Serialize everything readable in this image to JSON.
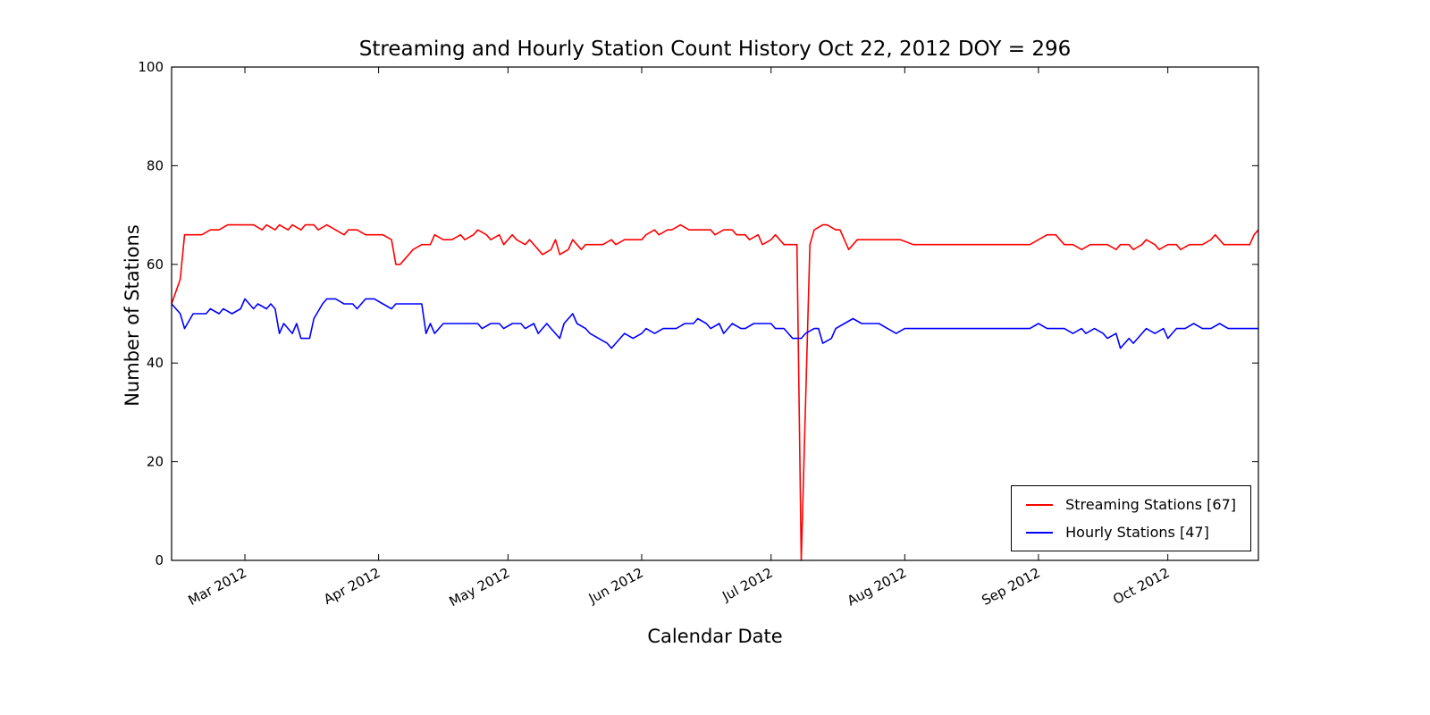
{
  "title": "Streaming and Hourly Station Count History Oct 22, 2012 DOY = 296",
  "chart_data": {
    "type": "line",
    "title": "Streaming and Hourly Station Count History Oct 22, 2012 DOY = 296",
    "xlabel": "Calendar Date",
    "ylabel": "Number of Stations",
    "ylim": [
      0,
      100
    ],
    "yticks": [
      0,
      20,
      40,
      60,
      80,
      100
    ],
    "x_unit": "day_of_year_2012",
    "xlim": [
      44,
      296
    ],
    "xticks": [
      {
        "day": 61,
        "label": "Mar 2012"
      },
      {
        "day": 92,
        "label": "Apr 2012"
      },
      {
        "day": 122,
        "label": "May 2012"
      },
      {
        "day": 153,
        "label": "Jun 2012"
      },
      {
        "day": 183,
        "label": "Jul 2012"
      },
      {
        "day": 214,
        "label": "Aug 2012"
      },
      {
        "day": 245,
        "label": "Sep 2012"
      },
      {
        "day": 275,
        "label": "Oct 2012"
      }
    ],
    "grid": false,
    "legend_position": "lower right",
    "series": [
      {
        "name": "Streaming Stations [67]",
        "color": "#ff0000",
        "points": [
          [
            44,
            52
          ],
          [
            46,
            57
          ],
          [
            47,
            66
          ],
          [
            49,
            66
          ],
          [
            51,
            66
          ],
          [
            53,
            67
          ],
          [
            55,
            67
          ],
          [
            57,
            68
          ],
          [
            59,
            68
          ],
          [
            61,
            68
          ],
          [
            63,
            68
          ],
          [
            65,
            67
          ],
          [
            66,
            68
          ],
          [
            68,
            67
          ],
          [
            69,
            68
          ],
          [
            71,
            67
          ],
          [
            72,
            68
          ],
          [
            74,
            67
          ],
          [
            75,
            68
          ],
          [
            77,
            68
          ],
          [
            78,
            67
          ],
          [
            80,
            68
          ],
          [
            82,
            67
          ],
          [
            84,
            66
          ],
          [
            85,
            67
          ],
          [
            87,
            67
          ],
          [
            89,
            66
          ],
          [
            91,
            66
          ],
          [
            93,
            66
          ],
          [
            95,
            65
          ],
          [
            96,
            60
          ],
          [
            97,
            60
          ],
          [
            98,
            61
          ],
          [
            100,
            63
          ],
          [
            102,
            64
          ],
          [
            104,
            64
          ],
          [
            105,
            66
          ],
          [
            107,
            65
          ],
          [
            109,
            65
          ],
          [
            111,
            66
          ],
          [
            112,
            65
          ],
          [
            114,
            66
          ],
          [
            115,
            67
          ],
          [
            117,
            66
          ],
          [
            118,
            65
          ],
          [
            120,
            66
          ],
          [
            121,
            64
          ],
          [
            123,
            66
          ],
          [
            124,
            65
          ],
          [
            126,
            64
          ],
          [
            127,
            65
          ],
          [
            129,
            63
          ],
          [
            130,
            62
          ],
          [
            132,
            63
          ],
          [
            133,
            65
          ],
          [
            134,
            62
          ],
          [
            136,
            63
          ],
          [
            137,
            65
          ],
          [
            139,
            63
          ],
          [
            140,
            64
          ],
          [
            142,
            64
          ],
          [
            144,
            64
          ],
          [
            146,
            65
          ],
          [
            147,
            64
          ],
          [
            149,
            65
          ],
          [
            151,
            65
          ],
          [
            153,
            65
          ],
          [
            154,
            66
          ],
          [
            156,
            67
          ],
          [
            157,
            66
          ],
          [
            159,
            67
          ],
          [
            160,
            67
          ],
          [
            162,
            68
          ],
          [
            164,
            67
          ],
          [
            165,
            67
          ],
          [
            167,
            67
          ],
          [
            169,
            67
          ],
          [
            170,
            66
          ],
          [
            172,
            67
          ],
          [
            174,
            67
          ],
          [
            175,
            66
          ],
          [
            177,
            66
          ],
          [
            178,
            65
          ],
          [
            180,
            66
          ],
          [
            181,
            64
          ],
          [
            183,
            65
          ],
          [
            184,
            66
          ],
          [
            185,
            65
          ],
          [
            186,
            64
          ],
          [
            188,
            64
          ],
          [
            189,
            64
          ],
          [
            190,
            0
          ],
          [
            192,
            64
          ],
          [
            193,
            67
          ],
          [
            195,
            68
          ],
          [
            196,
            68
          ],
          [
            198,
            67
          ],
          [
            199,
            67
          ],
          [
            201,
            63
          ],
          [
            203,
            65
          ],
          [
            205,
            65
          ],
          [
            207,
            65
          ],
          [
            210,
            65
          ],
          [
            213,
            65
          ],
          [
            216,
            64
          ],
          [
            220,
            64
          ],
          [
            224,
            64
          ],
          [
            228,
            64
          ],
          [
            232,
            64
          ],
          [
            236,
            64
          ],
          [
            240,
            64
          ],
          [
            243,
            64
          ],
          [
            245,
            65
          ],
          [
            247,
            66
          ],
          [
            249,
            66
          ],
          [
            251,
            64
          ],
          [
            253,
            64
          ],
          [
            255,
            63
          ],
          [
            257,
            64
          ],
          [
            259,
            64
          ],
          [
            261,
            64
          ],
          [
            263,
            63
          ],
          [
            264,
            64
          ],
          [
            266,
            64
          ],
          [
            267,
            63
          ],
          [
            269,
            64
          ],
          [
            270,
            65
          ],
          [
            272,
            64
          ],
          [
            273,
            63
          ],
          [
            275,
            64
          ],
          [
            277,
            64
          ],
          [
            278,
            63
          ],
          [
            280,
            64
          ],
          [
            281,
            64
          ],
          [
            283,
            64
          ],
          [
            285,
            65
          ],
          [
            286,
            66
          ],
          [
            288,
            64
          ],
          [
            289,
            64
          ],
          [
            291,
            64
          ],
          [
            293,
            64
          ],
          [
            294,
            64
          ],
          [
            295,
            66
          ],
          [
            296,
            67
          ]
        ]
      },
      {
        "name": "Hourly Stations [47]",
        "color": "#0000ff",
        "points": [
          [
            44,
            52
          ],
          [
            46,
            50
          ],
          [
            47,
            47
          ],
          [
            49,
            50
          ],
          [
            50,
            50
          ],
          [
            52,
            50
          ],
          [
            53,
            51
          ],
          [
            55,
            50
          ],
          [
            56,
            51
          ],
          [
            58,
            50
          ],
          [
            60,
            51
          ],
          [
            61,
            53
          ],
          [
            63,
            51
          ],
          [
            64,
            52
          ],
          [
            66,
            51
          ],
          [
            67,
            52
          ],
          [
            68,
            51
          ],
          [
            69,
            46
          ],
          [
            70,
            48
          ],
          [
            72,
            46
          ],
          [
            73,
            48
          ],
          [
            74,
            45
          ],
          [
            76,
            45
          ],
          [
            77,
            49
          ],
          [
            79,
            52
          ],
          [
            80,
            53
          ],
          [
            82,
            53
          ],
          [
            84,
            52
          ],
          [
            86,
            52
          ],
          [
            87,
            51
          ],
          [
            89,
            53
          ],
          [
            91,
            53
          ],
          [
            93,
            52
          ],
          [
            95,
            51
          ],
          [
            96,
            52
          ],
          [
            98,
            52
          ],
          [
            100,
            52
          ],
          [
            102,
            52
          ],
          [
            103,
            46
          ],
          [
            104,
            48
          ],
          [
            105,
            46
          ],
          [
            107,
            48
          ],
          [
            109,
            48
          ],
          [
            111,
            48
          ],
          [
            113,
            48
          ],
          [
            115,
            48
          ],
          [
            116,
            47
          ],
          [
            118,
            48
          ],
          [
            120,
            48
          ],
          [
            121,
            47
          ],
          [
            123,
            48
          ],
          [
            125,
            48
          ],
          [
            126,
            47
          ],
          [
            128,
            48
          ],
          [
            129,
            46
          ],
          [
            131,
            48
          ],
          [
            132,
            47
          ],
          [
            134,
            45
          ],
          [
            135,
            48
          ],
          [
            137,
            50
          ],
          [
            138,
            48
          ],
          [
            140,
            47
          ],
          [
            141,
            46
          ],
          [
            143,
            45
          ],
          [
            145,
            44
          ],
          [
            146,
            43
          ],
          [
            148,
            45
          ],
          [
            149,
            46
          ],
          [
            151,
            45
          ],
          [
            153,
            46
          ],
          [
            154,
            47
          ],
          [
            156,
            46
          ],
          [
            158,
            47
          ],
          [
            160,
            47
          ],
          [
            161,
            47
          ],
          [
            163,
            48
          ],
          [
            165,
            48
          ],
          [
            166,
            49
          ],
          [
            168,
            48
          ],
          [
            169,
            47
          ],
          [
            171,
            48
          ],
          [
            172,
            46
          ],
          [
            174,
            48
          ],
          [
            176,
            47
          ],
          [
            177,
            47
          ],
          [
            179,
            48
          ],
          [
            181,
            48
          ],
          [
            183,
            48
          ],
          [
            184,
            47
          ],
          [
            186,
            47
          ],
          [
            188,
            45
          ],
          [
            190,
            45
          ],
          [
            191,
            46
          ],
          [
            193,
            47
          ],
          [
            194,
            47
          ],
          [
            195,
            44
          ],
          [
            197,
            45
          ],
          [
            198,
            47
          ],
          [
            200,
            48
          ],
          [
            202,
            49
          ],
          [
            204,
            48
          ],
          [
            206,
            48
          ],
          [
            208,
            48
          ],
          [
            210,
            47
          ],
          [
            212,
            46
          ],
          [
            214,
            47
          ],
          [
            217,
            47
          ],
          [
            220,
            47
          ],
          [
            224,
            47
          ],
          [
            228,
            47
          ],
          [
            232,
            47
          ],
          [
            236,
            47
          ],
          [
            240,
            47
          ],
          [
            243,
            47
          ],
          [
            245,
            48
          ],
          [
            247,
            47
          ],
          [
            249,
            47
          ],
          [
            251,
            47
          ],
          [
            253,
            46
          ],
          [
            255,
            47
          ],
          [
            256,
            46
          ],
          [
            258,
            47
          ],
          [
            260,
            46
          ],
          [
            261,
            45
          ],
          [
            263,
            46
          ],
          [
            264,
            43
          ],
          [
            266,
            45
          ],
          [
            267,
            44
          ],
          [
            269,
            46
          ],
          [
            270,
            47
          ],
          [
            272,
            46
          ],
          [
            274,
            47
          ],
          [
            275,
            45
          ],
          [
            277,
            47
          ],
          [
            279,
            47
          ],
          [
            281,
            48
          ],
          [
            283,
            47
          ],
          [
            285,
            47
          ],
          [
            287,
            48
          ],
          [
            289,
            47
          ],
          [
            291,
            47
          ],
          [
            293,
            47
          ],
          [
            295,
            47
          ],
          [
            296,
            47
          ]
        ]
      }
    ]
  },
  "legend": {
    "entries": [
      "Streaming Stations [67]",
      "Hourly Stations [47]"
    ]
  }
}
